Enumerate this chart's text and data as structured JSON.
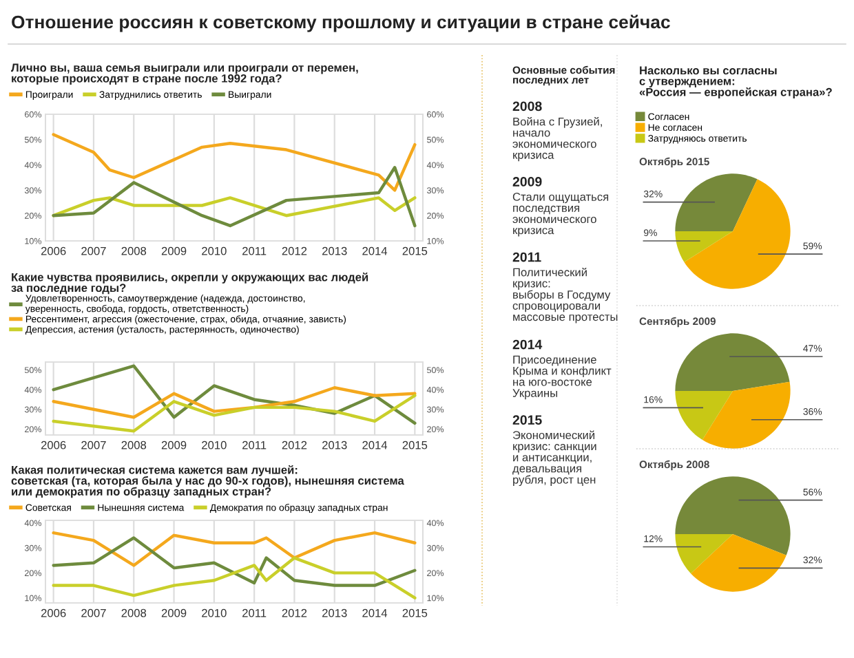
{
  "chart_data": [
    {
      "type": "other",
      "title": "Отношение россиян к советскому прошлому и ситуации в стране сейчас"
    },
    {
      "type": "line",
      "title": "Лично вы, ваша семья выиграли или проиграли от перемен,\nкоторые происходят в стране после 1992 года?",
      "legend": "top",
      "grid": "x",
      "marker": "none",
      "line_style": "solid",
      "xlim": [
        2005.8,
        2015.2
      ],
      "xticks": [
        2006,
        2007,
        2008,
        2009,
        2010,
        2011,
        2012,
        2013,
        2014,
        2015
      ],
      "ylim": [
        10,
        60
      ],
      "yticks": [
        {
          "value": 10,
          "label": "10%"
        },
        {
          "value": 20,
          "label": "20%"
        },
        {
          "value": 30,
          "label": "30%"
        },
        {
          "value": 40,
          "label": "40%"
        },
        {
          "value": 50,
          "label": "50%"
        },
        {
          "value": 60,
          "label": "60%"
        }
      ],
      "y2lim": [
        10,
        60
      ],
      "y2ticks": [
        {
          "value": 10,
          "label": "10%"
        },
        {
          "value": 20,
          "label": "20%"
        },
        {
          "value": 30,
          "label": "30%"
        },
        {
          "value": 40,
          "label": "40%"
        },
        {
          "value": 50,
          "label": "50%"
        },
        {
          "value": 60,
          "label": "60%"
        }
      ],
      "series": [
        {
          "name": "Проиграли",
          "color": "#f4a81d",
          "x": [
            2006,
            2007,
            2007.4,
            2008,
            2009.7,
            2010.4,
            2011.8,
            2014.1,
            2014.5,
            2015
          ],
          "values": [
            52,
            45,
            38,
            35,
            47,
            48.5,
            46,
            36,
            30,
            48
          ]
        },
        {
          "name": "Затруднились ответить",
          "color": "#c9cf2a",
          "x": [
            2006,
            2007,
            2007.4,
            2008,
            2009.7,
            2010.4,
            2011.8,
            2014.1,
            2014.5,
            2015
          ],
          "values": [
            20,
            26,
            27,
            24,
            24,
            27,
            20,
            27,
            22,
            27
          ]
        },
        {
          "name": "Выиграли",
          "color": "#6e8b3d",
          "x": [
            2006,
            2007,
            2008,
            2009.7,
            2010.4,
            2011.8,
            2014.1,
            2014.5,
            2015
          ],
          "values": [
            20,
            21,
            33,
            20,
            16,
            26,
            29,
            39,
            16
          ]
        }
      ]
    },
    {
      "type": "line",
      "title": "Какие чувства проявились, окрепли у окружающих вас людей\nза последние годы?",
      "legend": "top",
      "grid": "x",
      "marker": "none",
      "line_style": "solid",
      "xlim": [
        2005.8,
        2015.2
      ],
      "xticks": [
        2006,
        2007,
        2008,
        2009,
        2010,
        2011,
        2012,
        2013,
        2014,
        2015
      ],
      "ylim": [
        17,
        54
      ],
      "yticks": [
        {
          "value": 20,
          "label": "20%"
        },
        {
          "value": 30,
          "label": "30%"
        },
        {
          "value": 40,
          "label": "40%"
        },
        {
          "value": 50,
          "label": "50%"
        }
      ],
      "y2lim": [
        17,
        54
      ],
      "y2ticks": [
        {
          "value": 20,
          "label": "20%"
        },
        {
          "value": 30,
          "label": "30%"
        },
        {
          "value": 40,
          "label": "40%"
        },
        {
          "value": 50,
          "label": "50%"
        }
      ],
      "series": [
        {
          "name": "Удовлетворенность, самоутверждение (надежда, достоинство,\nуверенность, свобода, гордость, ответственность)",
          "color": "#6e8b3d",
          "x": [
            2006,
            2008,
            2009,
            2010,
            2011,
            2012,
            2013,
            2014,
            2015
          ],
          "values": [
            40,
            52,
            26,
            42,
            35,
            32,
            28,
            37,
            23
          ]
        },
        {
          "name": "Рессентимент, агрессия (ожесточение, страх, обида, отчаяние, зависть)",
          "color": "#f4a81d",
          "x": [
            2006,
            2008,
            2009,
            2010,
            2011,
            2012,
            2013,
            2014,
            2015
          ],
          "values": [
            34,
            26,
            38,
            29,
            31,
            34,
            41,
            37,
            38
          ]
        },
        {
          "name": "Депрессия, астения (усталость, растерянность, одиночество)",
          "color": "#c9cf2a",
          "x": [
            2006,
            2008,
            2009,
            2010,
            2011,
            2012,
            2013,
            2014,
            2015
          ],
          "values": [
            24,
            19,
            34,
            27,
            31,
            31,
            29,
            24,
            37
          ]
        }
      ]
    },
    {
      "type": "line",
      "title": "Какая политическая система кажется вам лучшей:\nсоветская (та, которая была у нас до 90-х годов), нынешняя система\nили демократия по образцу западных стран?",
      "legend": "top",
      "grid": "x",
      "marker": "none",
      "line_style": "solid",
      "xlim": [
        2005.8,
        2015.2
      ],
      "xticks": [
        2006,
        2007,
        2008,
        2009,
        2010,
        2011,
        2012,
        2013,
        2014,
        2015
      ],
      "ylim": [
        8,
        41
      ],
      "yticks": [
        {
          "value": 10,
          "label": "10%"
        },
        {
          "value": 20,
          "label": "20%"
        },
        {
          "value": 30,
          "label": "30%"
        },
        {
          "value": 40,
          "label": "40%"
        }
      ],
      "y2lim": [
        8,
        41
      ],
      "y2ticks": [
        {
          "value": 10,
          "label": "10%"
        },
        {
          "value": 20,
          "label": "20%"
        },
        {
          "value": 30,
          "label": "30%"
        },
        {
          "value": 40,
          "label": "40%"
        }
      ],
      "series": [
        {
          "name": "Советская",
          "color": "#f4a81d",
          "x": [
            2006,
            2007,
            2008,
            2009,
            2010,
            2011,
            2011.3,
            2012,
            2013,
            2014,
            2015
          ],
          "values": [
            36,
            33,
            23,
            35,
            32,
            32,
            34,
            26,
            33,
            36,
            32
          ]
        },
        {
          "name": "Нынешняя система",
          "color": "#6e8b3d",
          "x": [
            2006,
            2007,
            2008,
            2009,
            2010,
            2011,
            2011.3,
            2012,
            2013,
            2014,
            2015
          ],
          "values": [
            23,
            24,
            34,
            22,
            24,
            16,
            26,
            17,
            15,
            15,
            21
          ]
        },
        {
          "name": "Демократия по образцу западных стран",
          "color": "#c9cf2a",
          "x": [
            2006,
            2007,
            2008,
            2009,
            2010,
            2011,
            2011.3,
            2012,
            2013,
            2014,
            2015
          ],
          "values": [
            15,
            15,
            11,
            15,
            17,
            23,
            17,
            26,
            20,
            20,
            10
          ]
        }
      ]
    },
    {
      "type": "other",
      "title": "Основные события\nпоследних лет",
      "annotations": [
        "2008",
        "Война с Грузией,\nначало\nэкономического\nкризиса",
        "2009",
        "Стали ощущаться\nпоследствия\nэкономического\nкризиса",
        "2011",
        "Политический\nкризис:\nвыборы в Госдуму\nспровоцировали\nмассовые протесты",
        "2014",
        "Присоединение\nКрыма и конфликт\nна юго-востоке\nУкраины",
        "2015",
        "Экономический\nкризис: санкции\nи антисанкции,\nдевальвация\nрубля, рост цен"
      ]
    },
    {
      "type": "pie",
      "title": "Насколько вы согласны\nс утверждением:\n«Россия — европейская страна»?",
      "subtitle": "Октябрь 2015",
      "legend": "top",
      "categories": [
        "Согласен",
        "Не согласен",
        "Затрудняюсь ответить"
      ],
      "values": [
        32,
        59,
        9
      ],
      "colors": [
        "#76893a",
        "#f7ae00",
        "#c8c815"
      ],
      "value_labels": [
        "32%",
        "59%",
        "9%"
      ]
    },
    {
      "type": "pie",
      "title": "Сентябрь 2009",
      "values": [
        47,
        36,
        16
      ],
      "colors": [
        "#76893a",
        "#f7ae00",
        "#c8c815"
      ],
      "value_labels": [
        "47%",
        "36%",
        "16%"
      ]
    },
    {
      "type": "pie",
      "title": "Октябрь 2008",
      "values": [
        56,
        32,
        12
      ],
      "colors": [
        "#76893a",
        "#f7ae00",
        "#c8c815"
      ],
      "value_labels": [
        "56%",
        "32%",
        "12%"
      ]
    }
  ]
}
